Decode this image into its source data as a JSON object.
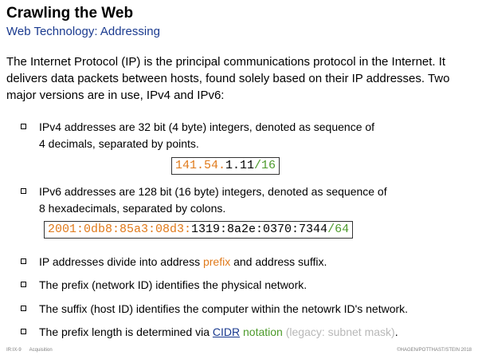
{
  "title": "Crawling the Web",
  "subtitle": "Web Technology: Addressing",
  "intro": "The Internet Protocol (IP) is the principal communications protocol in the Internet. It delivers data packets between hosts, found solely based on their IP addresses. Two major versions are in use, IPv4 and IPv6:",
  "bullets": {
    "ipv4_line1": "IPv4 addresses are 32 bit (4 byte) integers, denoted as sequence of",
    "ipv4_line2": "4 decimals, separated by points.",
    "ipv6_line1": "IPv6 addresses are 128 bit (16 byte) integers, denoted as sequence of",
    "ipv6_line2": "8 hexadecimals, separated by colons.",
    "prefix_pre": "IP addresses divide into address ",
    "prefix_word": "prefix",
    "prefix_post": " and address suffix.",
    "network_id": "The prefix (network ID) identifies the physical network.",
    "host_id": "The suffix (host ID) identifies the computer within the netowrk ID's network.",
    "length_pre": "The prefix length is determined via ",
    "length_link": "CIDR",
    "length_notation": " notation",
    "length_legacy": " (legacy: subnet mask)",
    "length_end": "."
  },
  "ipv4_example": {
    "prefix": "141.54.",
    "suffix": "1.11",
    "slash": "/",
    "length": "16"
  },
  "ipv6_example": {
    "prefix": "2001:0db8:85a3:08d3:",
    "suffix": "1319:8a2e:0370:7344",
    "slash": "/",
    "length": "64"
  },
  "footer": {
    "slide_id": "IR:IX-9",
    "section": "Acquisition",
    "copyright": "©HAGEN/POTTHAST/STEIN 2018"
  },
  "colors": {
    "prefix": "#e07a1b",
    "notation": "#4c9a2a",
    "legacy": "#b8b8b8",
    "subtitle": "#1a3a8f"
  }
}
